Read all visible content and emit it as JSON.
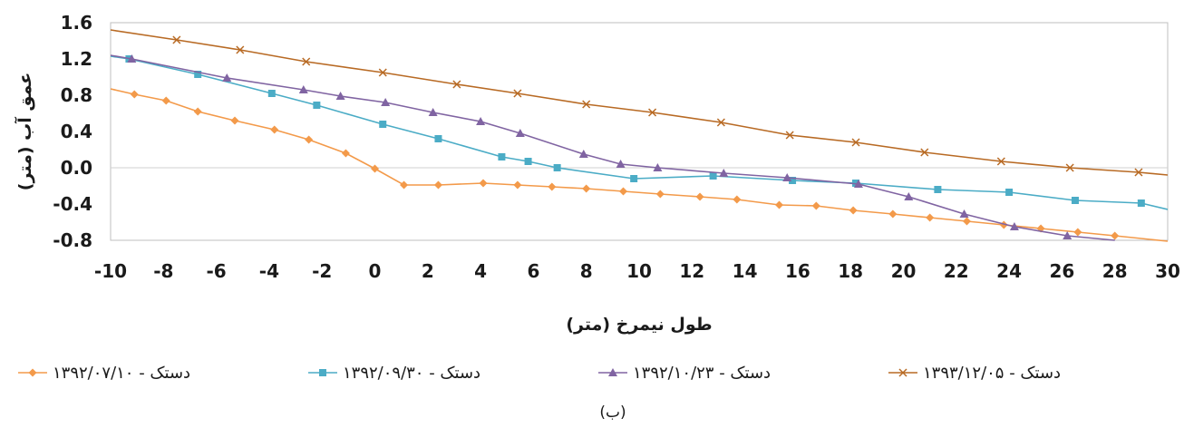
{
  "chart_data": {
    "type": "line",
    "xlabel": "طول نیمرخ (متر)",
    "ylabel": "عمق آب (متر)",
    "caption": "(ب)",
    "xlim": [
      -10,
      30
    ],
    "ylim": [
      -0.8,
      1.6
    ],
    "x_ticks": [
      "-10",
      "-8",
      "-6",
      "-4",
      "-2",
      "0",
      "2",
      "4",
      "6",
      "8",
      "10",
      "12",
      "14",
      "16",
      "18",
      "20",
      "22",
      "24",
      "26",
      "28",
      "30"
    ],
    "y_ticks": [
      "1.6",
      "1.2",
      "0.8",
      "0.4",
      "0.0",
      "-0.4",
      "-0.8"
    ],
    "x_tick_values": [
      -10,
      -8,
      -6,
      -4,
      -2,
      0,
      2,
      4,
      6,
      8,
      10,
      12,
      14,
      16,
      18,
      20,
      22,
      24,
      26,
      28,
      30
    ],
    "y_tick_values": [
      1.6,
      1.2,
      0.8,
      0.4,
      0.0,
      -0.4,
      -0.8
    ],
    "legend_position": "bottom",
    "series": [
      {
        "name": "دستک - ۱۳۹۲/۰۷/۱۰",
        "color": "#f39a4a",
        "marker": "diamond",
        "x": [
          -10,
          -9.1,
          -7.9,
          -6.7,
          -5.3,
          -3.8,
          -2.5,
          -1.1,
          0,
          1.1,
          2.4,
          4.1,
          5.4,
          6.7,
          8.0,
          9.4,
          10.8,
          12.3,
          13.7,
          15.3,
          16.7,
          18.1,
          19.6,
          21.0,
          22.4,
          23.8,
          25.2,
          26.6,
          28.0,
          30.0
        ],
        "y": [
          0.87,
          0.81,
          0.74,
          0.62,
          0.52,
          0.42,
          0.31,
          0.16,
          -0.01,
          -0.19,
          -0.19,
          -0.17,
          -0.19,
          -0.21,
          -0.23,
          -0.26,
          -0.29,
          -0.32,
          -0.35,
          -0.41,
          -0.42,
          -0.47,
          -0.51,
          -0.55,
          -0.59,
          -0.63,
          -0.67,
          -0.71,
          -0.75,
          -0.81
        ]
      },
      {
        "name": "دستک - ۱۳۹۲/۰۹/۳۰",
        "color": "#4bacc6",
        "marker": "square",
        "x": [
          -10,
          -9.3,
          -6.7,
          -3.9,
          -2.2,
          0.3,
          2.4,
          4.8,
          5.8,
          6.9,
          9.8,
          12.8,
          15.8,
          18.2,
          21.3,
          24.0,
          26.5,
          29.0,
          30.0
        ],
        "y": [
          1.23,
          1.2,
          1.03,
          0.82,
          0.69,
          0.48,
          0.32,
          0.12,
          0.07,
          0.0,
          -0.12,
          -0.09,
          -0.14,
          -0.17,
          -0.24,
          -0.27,
          -0.36,
          -0.39,
          -0.46
        ]
      },
      {
        "name": "دستک - ۱۳۹۲/۱۰/۲۳",
        "color": "#8064a2",
        "marker": "triangle",
        "x": [
          -10,
          -9.2,
          -5.6,
          -2.7,
          -1.3,
          0.4,
          2.2,
          4.0,
          5.5,
          7.9,
          9.3,
          10.7,
          13.2,
          15.6,
          18.3,
          20.2,
          22.3,
          24.2,
          26.2,
          28.0
        ],
        "y": [
          1.24,
          1.2,
          0.99,
          0.86,
          0.79,
          0.72,
          0.61,
          0.51,
          0.38,
          0.15,
          0.04,
          0.0,
          -0.06,
          -0.11,
          -0.18,
          -0.32,
          -0.51,
          -0.65,
          -0.75,
          -0.8
        ]
      },
      {
        "name": "دستک - ۱۳۹۳/۱۲/۰۵",
        "color": "#b86a24",
        "marker": "x",
        "x": [
          -10,
          -7.5,
          -5.1,
          -2.6,
          0.3,
          3.1,
          5.4,
          8.0,
          10.5,
          13.1,
          15.7,
          18.2,
          20.8,
          23.7,
          26.3,
          28.9,
          30.0
        ],
        "y": [
          1.52,
          1.41,
          1.3,
          1.17,
          1.05,
          0.92,
          0.82,
          0.7,
          0.61,
          0.5,
          0.36,
          0.28,
          0.17,
          0.07,
          0.0,
          -0.05,
          -0.08
        ]
      }
    ]
  }
}
